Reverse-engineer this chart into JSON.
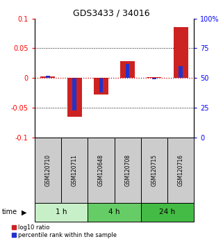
{
  "title": "GDS3433 / 34016",
  "samples": [
    "GSM120710",
    "GSM120711",
    "GSM120648",
    "GSM120708",
    "GSM120715",
    "GSM120716"
  ],
  "log10_ratio": [
    0.003,
    -0.065,
    -0.028,
    0.028,
    0.002,
    0.085
  ],
  "percentile_rank": [
    52,
    23,
    38,
    62,
    49,
    60
  ],
  "ylim": [
    -0.1,
    0.1
  ],
  "yticks_left": [
    -0.1,
    -0.05,
    0,
    0.05,
    0.1
  ],
  "yticks_right": [
    0,
    25,
    50,
    75,
    100
  ],
  "red_bar_color": "#cc2222",
  "blue_bar_color": "#2233cc",
  "sample_box_color": "#cccccc",
  "group_configs": [
    {
      "label": "1 h",
      "start": 0,
      "end": 1,
      "color": "#c8f0c8"
    },
    {
      "label": "4 h",
      "start": 2,
      "end": 3,
      "color": "#66cc66"
    },
    {
      "label": "24 h",
      "start": 4,
      "end": 5,
      "color": "#44bb44"
    }
  ],
  "legend_red": "log10 ratio",
  "legend_blue": "percentile rank within the sample"
}
